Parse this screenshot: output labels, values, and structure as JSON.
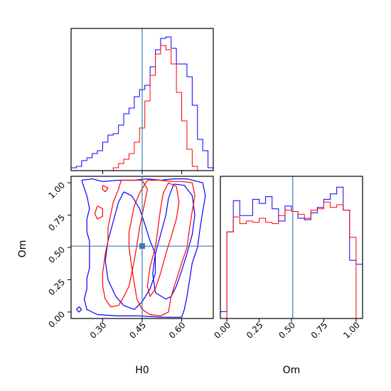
{
  "chart_data": {
    "type": "corner",
    "parameters": [
      "H0",
      "Om"
    ],
    "truth": {
      "H0": 0.45,
      "Om": 0.51,
      "line_color": "#3d7ab0",
      "marker_color": "#3d7ab0"
    },
    "series": [
      {
        "color": "#0000ff"
      },
      {
        "color": "#ff0000"
      }
    ],
    "panels": [
      {
        "id": "H0-hist",
        "type": "histogram",
        "x_param": "H0",
        "xlim": [
          0.18,
          0.72
        ],
        "bin_edges": [
          0.18,
          0.2,
          0.22,
          0.24,
          0.26,
          0.28,
          0.3,
          0.32,
          0.34,
          0.36,
          0.38,
          0.4,
          0.42,
          0.44,
          0.46,
          0.48,
          0.5,
          0.52,
          0.54,
          0.56,
          0.58,
          0.6,
          0.62,
          0.64,
          0.66,
          0.68,
          0.7,
          0.72
        ],
        "ylim": [
          0,
          1.0
        ],
        "series_counts": [
          [
            0.02,
            0.03,
            0.07,
            0.09,
            0.12,
            0.14,
            0.2,
            0.25,
            0.26,
            0.32,
            0.4,
            0.44,
            0.52,
            0.57,
            0.6,
            0.73,
            0.85,
            0.93,
            0.94,
            0.86,
            0.75,
            0.75,
            0.66,
            0.46,
            0.22,
            0.14,
            0.02
          ],
          [
            0,
            0,
            0,
            0,
            0,
            0,
            0,
            0,
            0.02,
            0.05,
            0.08,
            0.12,
            0.2,
            0.3,
            0.49,
            0.67,
            0.82,
            0.88,
            0.85,
            0.75,
            0.55,
            0.35,
            0.15,
            0.03,
            0,
            0,
            0
          ]
        ],
        "tick_values": [
          0.3,
          0.45,
          0.6
        ]
      },
      {
        "id": "H0-Om-contour",
        "type": "contour",
        "x_param": "H0",
        "y_param": "Om",
        "xlim": [
          0.18,
          0.72
        ],
        "ylim": [
          -0.05,
          1.05
        ],
        "x_ticks": [
          "0.30",
          "0.45",
          "0.60"
        ],
        "x_tick_values": [
          0.3,
          0.45,
          0.6
        ],
        "y_ticks": [
          "0.00",
          "0.25",
          "0.50",
          "0.75",
          "1.00"
        ],
        "y_tick_values": [
          0.0,
          0.25,
          0.5,
          0.75,
          1.0
        ],
        "xlabel": "H0",
        "ylabel": "Om",
        "series_contours": [
          [
            [
              [
                0.22,
                1.02
              ],
              [
                0.26,
                1.03
              ],
              [
                0.3,
                1.01
              ],
              [
                0.36,
                1.02
              ],
              [
                0.42,
                1.02
              ],
              [
                0.47,
                1.03
              ],
              [
                0.52,
                1.02
              ],
              [
                0.57,
                1.03
              ],
              [
                0.62,
                1.03
              ],
              [
                0.68,
                1.0
              ],
              [
                0.69,
                0.9
              ],
              [
                0.68,
                0.78
              ],
              [
                0.67,
                0.65
              ],
              [
                0.66,
                0.5
              ],
              [
                0.64,
                0.38
              ],
              [
                0.63,
                0.25
              ],
              [
                0.62,
                0.12
              ],
              [
                0.61,
                0.02
              ],
              [
                0.6,
                -0.04
              ],
              [
                0.52,
                -0.04
              ],
              [
                0.44,
                -0.03
              ],
              [
                0.36,
                -0.03
              ],
              [
                0.28,
                -0.02
              ],
              [
                0.24,
                0.02
              ],
              [
                0.23,
                0.1
              ],
              [
                0.24,
                0.18
              ],
              [
                0.24,
                0.26
              ],
              [
                0.25,
                0.34
              ],
              [
                0.25,
                0.44
              ],
              [
                0.25,
                0.55
              ],
              [
                0.24,
                0.62
              ],
              [
                0.24,
                0.72
              ],
              [
                0.25,
                0.8
              ],
              [
                0.24,
                0.9
              ],
              [
                0.22,
                1.02
              ]
            ],
            [
              [
                0.38,
                0.93
              ],
              [
                0.41,
                0.9
              ],
              [
                0.44,
                0.8
              ],
              [
                0.46,
                0.68
              ],
              [
                0.48,
                0.55
              ],
              [
                0.5,
                0.45
              ],
              [
                0.5,
                0.3
              ],
              [
                0.48,
                0.18
              ],
              [
                0.45,
                0.08
              ],
              [
                0.42,
                0.02
              ],
              [
                0.38,
                0.05
              ],
              [
                0.35,
                0.12
              ],
              [
                0.32,
                0.25
              ],
              [
                0.31,
                0.4
              ],
              [
                0.32,
                0.55
              ],
              [
                0.34,
                0.7
              ],
              [
                0.36,
                0.85
              ],
              [
                0.38,
                0.93
              ]
            ],
            [
              [
                0.57,
                0.99
              ],
              [
                0.61,
                0.98
              ],
              [
                0.64,
                0.9
              ],
              [
                0.65,
                0.75
              ],
              [
                0.64,
                0.6
              ],
              [
                0.62,
                0.45
              ],
              [
                0.6,
                0.32
              ],
              [
                0.58,
                0.2
              ],
              [
                0.56,
                0.12
              ],
              [
                0.54,
                0.1
              ],
              [
                0.5,
                0.15
              ],
              [
                0.49,
                0.3
              ],
              [
                0.5,
                0.45
              ],
              [
                0.52,
                0.6
              ],
              [
                0.54,
                0.75
              ],
              [
                0.55,
                0.88
              ],
              [
                0.57,
                0.99
              ]
            ],
            [
              [
                0.2,
                0.02
              ],
              [
                0.21,
                0.0
              ],
              [
                0.22,
                0.02
              ],
              [
                0.21,
                0.04
              ],
              [
                0.2,
                0.02
              ]
            ]
          ],
          [
            [
              [
                0.47,
                1.02
              ],
              [
                0.52,
                1.02
              ],
              [
                0.56,
                1.01
              ],
              [
                0.6,
                1.01
              ],
              [
                0.64,
                1.0
              ],
              [
                0.65,
                0.9
              ],
              [
                0.64,
                0.78
              ],
              [
                0.63,
                0.65
              ],
              [
                0.62,
                0.5
              ],
              [
                0.6,
                0.38
              ],
              [
                0.58,
                0.25
              ],
              [
                0.56,
                0.12
              ],
              [
                0.55,
                0.0
              ],
              [
                0.52,
                -0.03
              ],
              [
                0.48,
                -0.02
              ],
              [
                0.45,
                0.02
              ],
              [
                0.43,
                0.1
              ],
              [
                0.42,
                0.22
              ],
              [
                0.41,
                0.35
              ],
              [
                0.4,
                0.5
              ],
              [
                0.4,
                0.62
              ],
              [
                0.41,
                0.72
              ],
              [
                0.42,
                0.82
              ],
              [
                0.44,
                0.92
              ],
              [
                0.47,
                1.02
              ]
            ],
            [
              [
                0.37,
                1.02
              ],
              [
                0.4,
                1.02
              ],
              [
                0.45,
                1.02
              ],
              [
                0.47,
                0.95
              ],
              [
                0.46,
                0.85
              ],
              [
                0.45,
                0.75
              ],
              [
                0.44,
                0.65
              ],
              [
                0.43,
                0.52
              ],
              [
                0.42,
                0.4
              ],
              [
                0.41,
                0.3
              ],
              [
                0.4,
                0.2
              ],
              [
                0.38,
                0.12
              ],
              [
                0.36,
                0.05
              ],
              [
                0.33,
                0.04
              ],
              [
                0.31,
                0.1
              ],
              [
                0.3,
                0.2
              ],
              [
                0.3,
                0.3
              ],
              [
                0.31,
                0.45
              ],
              [
                0.32,
                0.55
              ],
              [
                0.32,
                0.65
              ],
              [
                0.33,
                0.75
              ],
              [
                0.34,
                0.85
              ],
              [
                0.36,
                0.95
              ],
              [
                0.37,
                1.02
              ]
            ],
            [
              [
                0.55,
                1.0
              ],
              [
                0.58,
                0.97
              ],
              [
                0.59,
                0.85
              ],
              [
                0.58,
                0.72
              ],
              [
                0.56,
                0.58
              ],
              [
                0.54,
                0.45
              ],
              [
                0.52,
                0.3
              ],
              [
                0.5,
                0.18
              ],
              [
                0.48,
                0.12
              ],
              [
                0.47,
                0.2
              ],
              [
                0.48,
                0.35
              ],
              [
                0.5,
                0.5
              ],
              [
                0.51,
                0.65
              ],
              [
                0.52,
                0.8
              ],
              [
                0.53,
                0.92
              ],
              [
                0.55,
                1.0
              ]
            ],
            [
              [
                0.28,
                0.82
              ],
              [
                0.3,
                0.8
              ],
              [
                0.3,
                0.74
              ],
              [
                0.28,
                0.72
              ],
              [
                0.27,
                0.76
              ],
              [
                0.28,
                0.82
              ]
            ],
            [
              [
                0.3,
                0.98
              ],
              [
                0.32,
                0.96
              ],
              [
                0.31,
                0.93
              ],
              [
                0.3,
                0.95
              ],
              [
                0.3,
                0.98
              ]
            ]
          ]
        ]
      },
      {
        "id": "Om-hist",
        "type": "histogram",
        "x_param": "Om",
        "xlim": [
          -0.05,
          1.05
        ],
        "bin_edges": [
          -0.05,
          0.0,
          0.05,
          0.1,
          0.15,
          0.2,
          0.25,
          0.3,
          0.35,
          0.4,
          0.45,
          0.5,
          0.55,
          0.6,
          0.65,
          0.7,
          0.75,
          0.8,
          0.85,
          0.9,
          0.95,
          1.0,
          1.05
        ],
        "ylim": [
          0,
          1.05
        ],
        "series_counts": [
          [
            0.05,
            0.64,
            0.87,
            0.76,
            0.76,
            0.88,
            0.85,
            0.9,
            0.81,
            0.72,
            0.83,
            0.79,
            0.74,
            0.73,
            0.78,
            0.82,
            0.88,
            0.92,
            0.97,
            0.8,
            0.43,
            0.4
          ],
          [
            0.0,
            0.64,
            0.75,
            0.7,
            0.72,
            0.71,
            0.74,
            0.71,
            0.7,
            0.76,
            0.8,
            0.79,
            0.77,
            0.74,
            0.8,
            0.81,
            0.86,
            0.82,
            0.84,
            0.8,
            0.6,
            0.0
          ]
        ],
        "x_ticks": [
          "0.00",
          "0.25",
          "0.50",
          "0.75",
          "1.00"
        ],
        "x_tick_values": [
          0.0,
          0.25,
          0.5,
          0.75,
          1.0
        ],
        "xlabel": "Om"
      }
    ]
  }
}
